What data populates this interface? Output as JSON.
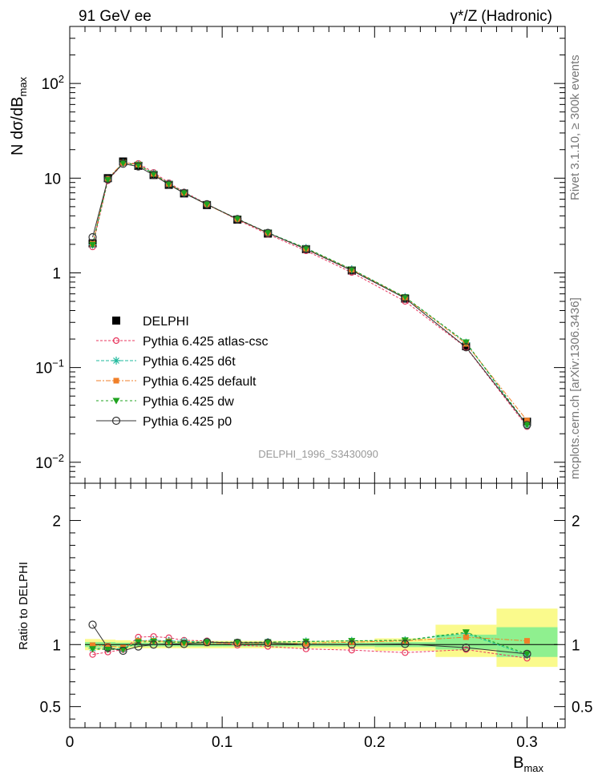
{
  "header": {
    "left": "91 GeV ee",
    "right_prefix": "γ*/Z",
    "right_suffix": "(Hadronic)"
  },
  "side_labels": {
    "rivet": "Rivet 3.1.10, ≥ 300k events",
    "mcplots": "mcplots.cern.ch [arXiv:1306.3436]"
  },
  "watermark": "DELPHI_1996_S3430090",
  "colors": {
    "delphi": "#000000",
    "atlas": "#e8375f",
    "d6t": "#1fb99c",
    "default": "#f07f28",
    "dw": "#1fa31f",
    "p0": "#333333",
    "band_green": "#8ff08f",
    "band_yellow": "#fafa8c"
  },
  "chart_data": [
    {
      "type": "scatter",
      "ylabel_main": "N dσ/dB",
      "ylabel_sub": "max",
      "yscale": "log",
      "ylim": [
        0.006,
        400
      ],
      "xlim": [
        0,
        0.325
      ],
      "y_ticks": [
        "10",
        "10",
        "1",
        "10",
        "10"
      ],
      "y_tick_values": [
        0.01,
        0.1,
        1,
        10,
        100
      ],
      "y_tick_exps": [
        "−2",
        "−1",
        "",
        "",
        "2"
      ],
      "x": [
        0.015,
        0.025,
        0.035,
        0.045,
        0.055,
        0.065,
        0.075,
        0.09,
        0.11,
        0.13,
        0.155,
        0.185,
        0.22,
        0.26,
        0.3
      ],
      "series": [
        {
          "name": "DELPHI",
          "key": "delphi",
          "values": [
            2.05,
            10.0,
            15.0,
            13.5,
            10.8,
            8.5,
            6.9,
            5.2,
            3.65,
            2.6,
            1.78,
            1.06,
            0.535,
            0.168,
            0.0268
          ]
        },
        {
          "name": "Pythia 6.425 atlas-csc",
          "key": "atlas",
          "values": [
            1.88,
            9.4,
            14.4,
            14.3,
            11.5,
            8.95,
            7.15,
            5.35,
            3.62,
            2.56,
            1.71,
            1.01,
            0.5,
            0.163,
            0.0238
          ]
        },
        {
          "name": "Pythia 6.425 d6t",
          "key": "d6t",
          "values": [
            1.98,
            9.7,
            14.5,
            13.9,
            11.2,
            8.75,
            7.05,
            5.3,
            3.7,
            2.65,
            1.83,
            1.09,
            0.555,
            0.183,
            0.0245
          ]
        },
        {
          "name": "Pythia 6.425 default",
          "key": "default",
          "values": [
            2.04,
            9.9,
            14.6,
            13.9,
            11.1,
            8.7,
            7.0,
            5.25,
            3.68,
            2.63,
            1.8,
            1.08,
            0.55,
            0.178,
            0.0276
          ]
        },
        {
          "name": "Pythia 6.425 dw",
          "key": "dw",
          "values": [
            1.98,
            9.6,
            14.4,
            13.8,
            11.1,
            8.7,
            7.0,
            5.3,
            3.72,
            2.66,
            1.82,
            1.09,
            0.555,
            0.185,
            0.0248
          ]
        },
        {
          "name": "Pythia 6.425 p0",
          "key": "p0",
          "values": [
            2.38,
            9.75,
            14.2,
            13.3,
            10.8,
            8.55,
            6.95,
            5.3,
            3.7,
            2.64,
            1.78,
            1.06,
            0.54,
            0.164,
            0.0248
          ]
        }
      ],
      "legend": "left"
    },
    {
      "type": "scatter",
      "ylabel": "Ratio to DELPHI",
      "xlabel_main": "B",
      "xlabel_sub": "max",
      "ylim": [
        0.33,
        2.3
      ],
      "xlim": [
        0,
        0.325
      ],
      "y_ticks": [
        "0.5",
        "1",
        "2"
      ],
      "y_tick_values": [
        0.5,
        1,
        2
      ],
      "x_ticks": [
        "0",
        "0.1",
        "0.2",
        "0.3"
      ],
      "x_tick_values": [
        0,
        0.1,
        0.2,
        0.3
      ],
      "x": [
        0.015,
        0.025,
        0.035,
        0.045,
        0.055,
        0.065,
        0.075,
        0.09,
        0.11,
        0.13,
        0.155,
        0.185,
        0.22,
        0.26,
        0.3
      ],
      "bands": [
        {
          "x0": 0.01,
          "x1": 0.02,
          "yellow": [
            0.955,
            1.045
          ],
          "green": [
            0.98,
            1.02
          ]
        },
        {
          "x0": 0.02,
          "x1": 0.03,
          "yellow": [
            0.96,
            1.04
          ],
          "green": [
            0.98,
            1.02
          ]
        },
        {
          "x0": 0.03,
          "x1": 0.04,
          "yellow": [
            0.965,
            1.035
          ],
          "green": [
            0.985,
            1.015
          ]
        },
        {
          "x0": 0.04,
          "x1": 0.05,
          "yellow": [
            0.97,
            1.03
          ],
          "green": [
            0.985,
            1.015
          ]
        },
        {
          "x0": 0.05,
          "x1": 0.06,
          "yellow": [
            0.97,
            1.03
          ],
          "green": [
            0.985,
            1.015
          ]
        },
        {
          "x0": 0.06,
          "x1": 0.07,
          "yellow": [
            0.97,
            1.03
          ],
          "green": [
            0.985,
            1.015
          ]
        },
        {
          "x0": 0.07,
          "x1": 0.08,
          "yellow": [
            0.97,
            1.03
          ],
          "green": [
            0.985,
            1.015
          ]
        },
        {
          "x0": 0.08,
          "x1": 0.1,
          "yellow": [
            0.97,
            1.03
          ],
          "green": [
            0.985,
            1.015
          ]
        },
        {
          "x0": 0.1,
          "x1": 0.12,
          "yellow": [
            0.97,
            1.03
          ],
          "green": [
            0.985,
            1.015
          ]
        },
        {
          "x0": 0.12,
          "x1": 0.14,
          "yellow": [
            0.97,
            1.03
          ],
          "green": [
            0.985,
            1.015
          ]
        },
        {
          "x0": 0.14,
          "x1": 0.17,
          "yellow": [
            0.97,
            1.03
          ],
          "green": [
            0.985,
            1.015
          ]
        },
        {
          "x0": 0.17,
          "x1": 0.2,
          "yellow": [
            0.965,
            1.035
          ],
          "green": [
            0.985,
            1.015
          ]
        },
        {
          "x0": 0.2,
          "x1": 0.24,
          "yellow": [
            0.95,
            1.05
          ],
          "green": [
            0.98,
            1.02
          ]
        },
        {
          "x0": 0.24,
          "x1": 0.28,
          "yellow": [
            0.9,
            1.16
          ],
          "green": [
            0.96,
            1.08
          ]
        },
        {
          "x0": 0.28,
          "x1": 0.32,
          "yellow": [
            0.82,
            1.29
          ],
          "green": [
            0.9,
            1.14
          ]
        }
      ],
      "series": [
        {
          "name": "Pythia 6.425 atlas-csc",
          "key": "atlas",
          "values": [
            0.92,
            0.94,
            0.96,
            1.06,
            1.065,
            1.055,
            1.035,
            1.03,
            0.995,
            0.985,
            0.965,
            0.955,
            0.935,
            0.96,
            0.89
          ]
        },
        {
          "name": "Pythia 6.425 d6t",
          "key": "d6t",
          "values": [
            0.97,
            0.97,
            0.965,
            1.03,
            1.035,
            1.03,
            1.025,
            1.02,
            1.015,
            1.02,
            1.025,
            1.03,
            1.035,
            1.09,
            0.915
          ]
        },
        {
          "name": "Pythia 6.425 default",
          "key": "default",
          "values": [
            0.995,
            0.99,
            0.975,
            1.03,
            1.03,
            1.025,
            1.015,
            1.01,
            1.01,
            1.01,
            1.01,
            1.02,
            1.03,
            1.06,
            1.03
          ]
        },
        {
          "name": "Pythia 6.425 dw",
          "key": "dw",
          "values": [
            0.965,
            0.96,
            0.96,
            1.02,
            1.025,
            1.02,
            1.015,
            1.02,
            1.02,
            1.02,
            1.025,
            1.03,
            1.035,
            1.1,
            0.925
          ]
        },
        {
          "name": "Pythia 6.425 p0",
          "key": "p0",
          "values": [
            1.16,
            0.975,
            0.95,
            0.985,
            1.0,
            1.005,
            1.005,
            1.02,
            1.015,
            1.015,
            1.0,
            1.0,
            1.005,
            0.975,
            0.925
          ]
        }
      ]
    }
  ]
}
